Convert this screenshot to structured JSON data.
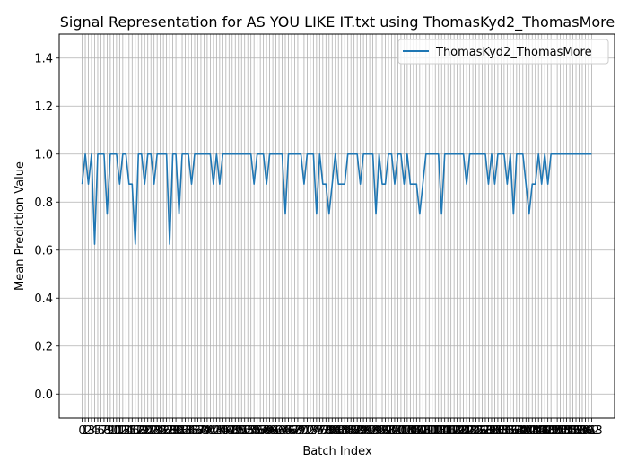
{
  "chart_data": {
    "type": "line",
    "title": "Signal Representation for AS YOU LIKE IT.txt using ThomasKyd2_ThomasMore",
    "xlabel": "Batch Index",
    "ylabel": "Mean Prediction Value",
    "ylim": [
      -0.1,
      1.5
    ],
    "yticks": [
      0.0,
      0.2,
      0.4,
      0.6,
      0.8,
      1.0,
      1.2,
      1.4
    ],
    "ytick_labels": [
      "0.0",
      "0.2",
      "0.4",
      "0.6",
      "0.8",
      "1.0",
      "1.2",
      "1.4"
    ],
    "grid": true,
    "legend_position": "top-right",
    "series": [
      {
        "name": "ThomasKyd2_ThomasMore",
        "color": "#1f77b4",
        "x": [
          0,
          1,
          2,
          3,
          4,
          5,
          6,
          7,
          8,
          9,
          10,
          11,
          12,
          13,
          14,
          15,
          16,
          17,
          18,
          19,
          20,
          21,
          22,
          23,
          24,
          25,
          26,
          27,
          28,
          29,
          30,
          31,
          32,
          33,
          34,
          35,
          36,
          37,
          38,
          39,
          40,
          41,
          42,
          43,
          44,
          45,
          46,
          47,
          48,
          49,
          50,
          51,
          52,
          53,
          54,
          55,
          56,
          57,
          58,
          59,
          60,
          61,
          62,
          63,
          64,
          65,
          66,
          67,
          68,
          69,
          70,
          71,
          72,
          73,
          74,
          75,
          76,
          77,
          78,
          79,
          80,
          81,
          82,
          83,
          84,
          85,
          86,
          87,
          88,
          89,
          90,
          91,
          92,
          93,
          94,
          95,
          96,
          97,
          98,
          99,
          100,
          101,
          102,
          103,
          104,
          105,
          106,
          107,
          108,
          109,
          110,
          111,
          112,
          113,
          114,
          115,
          116,
          117,
          118,
          119,
          120,
          121,
          122,
          123,
          124,
          125,
          126,
          127,
          128,
          129,
          130,
          131,
          132,
          133,
          134,
          135,
          136,
          137,
          138,
          139,
          140,
          141,
          142,
          143,
          144,
          145,
          146,
          147,
          148,
          149,
          150,
          151,
          152,
          153,
          154,
          155,
          156,
          157,
          158,
          159,
          160,
          161,
          162,
          163
        ],
        "values": [
          0.875,
          1.0,
          0.875,
          1.0,
          0.625,
          1.0,
          1.0,
          1.0,
          0.75,
          1.0,
          1.0,
          1.0,
          0.875,
          1.0,
          1.0,
          0.875,
          0.875,
          0.625,
          1.0,
          1.0,
          0.875,
          1.0,
          1.0,
          0.875,
          1.0,
          1.0,
          1.0,
          1.0,
          0.625,
          1.0,
          1.0,
          0.75,
          1.0,
          1.0,
          1.0,
          0.875,
          1.0,
          1.0,
          1.0,
          1.0,
          1.0,
          1.0,
          0.875,
          1.0,
          0.875,
          1.0,
          1.0,
          1.0,
          1.0,
          1.0,
          1.0,
          1.0,
          1.0,
          1.0,
          1.0,
          0.875,
          1.0,
          1.0,
          1.0,
          0.875,
          1.0,
          1.0,
          1.0,
          1.0,
          1.0,
          0.75,
          1.0,
          1.0,
          1.0,
          1.0,
          1.0,
          0.875,
          1.0,
          1.0,
          1.0,
          0.75,
          1.0,
          0.875,
          0.875,
          0.75,
          0.875,
          1.0,
          0.875,
          0.875,
          0.875,
          1.0,
          1.0,
          1.0,
          1.0,
          0.875,
          1.0,
          1.0,
          1.0,
          1.0,
          0.75,
          1.0,
          0.875,
          0.875,
          1.0,
          1.0,
          0.875,
          1.0,
          1.0,
          0.875,
          1.0,
          0.875,
          0.875,
          0.875,
          0.75,
          0.875,
          1.0,
          1.0,
          1.0,
          1.0,
          1.0,
          0.75,
          1.0,
          1.0,
          1.0,
          1.0,
          1.0,
          1.0,
          1.0,
          0.875,
          1.0,
          1.0,
          1.0,
          1.0,
          1.0,
          1.0,
          0.875,
          1.0,
          0.875,
          1.0,
          1.0,
          1.0,
          0.875,
          1.0,
          0.75,
          1.0,
          1.0,
          1.0,
          0.875,
          0.75,
          0.875,
          0.875,
          1.0,
          0.875,
          1.0,
          0.875,
          1.0,
          1.0,
          1.0,
          1.0,
          1.0,
          1.0,
          1.0,
          1.0,
          1.0,
          1.0,
          1.0,
          1.0,
          1.0,
          1.0
        ]
      }
    ],
    "x_tick_labels": [
      "0",
      "1",
      "2",
      "3",
      "4",
      "5",
      "6",
      "7",
      "8",
      "9",
      "10",
      "11",
      "12",
      "13",
      "14",
      "15",
      "16",
      "17",
      "18",
      "19",
      "20",
      "21",
      "22",
      "23",
      "24",
      "25",
      "26",
      "27",
      "28",
      "29",
      "30",
      "31",
      "32",
      "33",
      "34",
      "35",
      "36",
      "37",
      "38",
      "39",
      "40",
      "41",
      "42",
      "43",
      "44",
      "45",
      "46",
      "47",
      "48",
      "49",
      "50",
      "51",
      "52",
      "53",
      "54",
      "55",
      "56",
      "57",
      "58",
      "59",
      "60",
      "61",
      "62",
      "63",
      "64",
      "65",
      "66",
      "67",
      "68",
      "69",
      "70",
      "71",
      "72",
      "73",
      "74",
      "75",
      "76",
      "77",
      "78",
      "79",
      "80",
      "81",
      "82",
      "83",
      "84",
      "85",
      "86",
      "87",
      "88",
      "89",
      "90",
      "91",
      "92",
      "93",
      "94",
      "95",
      "96",
      "97",
      "98",
      "99",
      "100",
      "101",
      "102",
      "103",
      "104",
      "105",
      "106",
      "107",
      "108",
      "109",
      "110",
      "111",
      "112",
      "113",
      "114",
      "115",
      "116",
      "117",
      "118",
      "119",
      "120",
      "121",
      "122",
      "123",
      "124",
      "125",
      "126",
      "127",
      "128",
      "129",
      "130",
      "131",
      "132",
      "133",
      "134",
      "135",
      "136",
      "137",
      "138",
      "139",
      "140",
      "141",
      "142",
      "143",
      "144",
      "145",
      "146",
      "147",
      "148",
      "149",
      "150",
      "151",
      "152",
      "153",
      "154",
      "155",
      "156",
      "157",
      "158",
      "159",
      "160",
      "161",
      "162",
      "163"
    ]
  }
}
